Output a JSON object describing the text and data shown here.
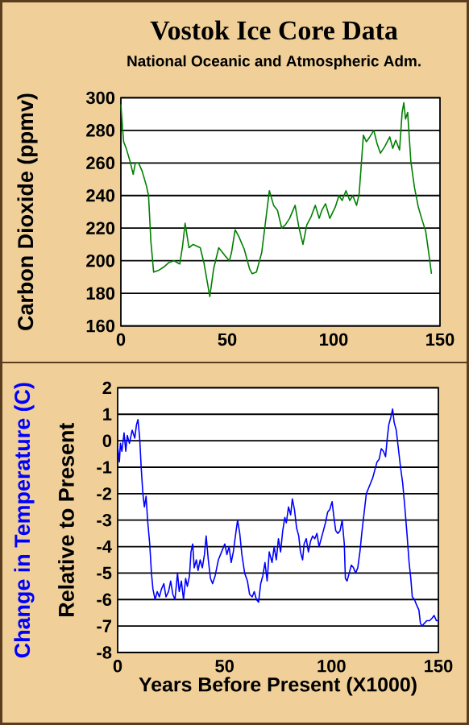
{
  "chart_data": [
    {
      "type": "line",
      "title": "Vostok Ice Core Data",
      "subtitle": "National Oceanic and Atmospheric Adm.",
      "ylabel": "Carbon Dioxide (ppmv)",
      "xlim": [
        0,
        150
      ],
      "xticks": [
        0,
        50,
        100,
        150
      ],
      "ylim": [
        160,
        300
      ],
      "yticks": [
        160,
        180,
        200,
        220,
        240,
        260,
        280,
        300
      ],
      "grid": "y",
      "series": [
        {
          "color": "#008000",
          "x": [
            0,
            0.8,
            1.3,
            2.5,
            4.3,
            5.8,
            6.8,
            8.3,
            10,
            12,
            13,
            14.1,
            15.4,
            17.6,
            20,
            22.7,
            25,
            27.7,
            29,
            30.2,
            32,
            34,
            37.3,
            39,
            40.6,
            41.8,
            43.6,
            46,
            49,
            51,
            52,
            53.7,
            55.4,
            58,
            60.5,
            61.7,
            63.7,
            66.2,
            69.8,
            71.8,
            73.6,
            75.6,
            77.3,
            79.3,
            81.9,
            83.6,
            85.6,
            87.4,
            89.4,
            91.4,
            93.2,
            94.5,
            96.2,
            98.2,
            100.8,
            102.5,
            104,
            105.8,
            107.6,
            109,
            110.8,
            112,
            114,
            115.4,
            117,
            118.9,
            120.4,
            122,
            124,
            126.4,
            127.8,
            129.2,
            131,
            132.2,
            133,
            133.8,
            134.8,
            136.3,
            138,
            139.8,
            141.6,
            143.3,
            144.8,
            146
          ],
          "values": [
            296,
            281,
            273,
            269,
            261,
            253,
            260,
            260,
            255,
            246,
            240,
            212,
            193,
            194,
            196,
            199,
            200,
            198,
            209,
            223,
            208,
            210,
            208,
            199,
            187,
            178,
            195,
            208,
            203,
            200,
            205,
            219,
            215,
            207,
            195,
            192,
            193,
            205,
            243,
            234,
            231,
            220,
            222,
            226,
            234,
            221,
            210,
            222,
            227,
            234,
            226,
            231,
            235,
            226,
            233,
            240,
            237,
            243,
            237,
            240,
            234,
            241,
            277,
            273,
            276,
            280,
            272,
            266,
            270,
            276,
            269,
            274,
            268,
            291,
            297,
            287,
            291,
            261,
            245,
            233,
            225,
            218,
            204,
            192
          ]
        }
      ]
    },
    {
      "type": "line",
      "xlabel": "Years Before Present (X1000)",
      "ylabel": "Change in Temperature (C)",
      "annotations": [
        "Relative to Present"
      ],
      "xlim": [
        0,
        150
      ],
      "xticks": [
        0,
        50,
        100,
        150
      ],
      "ylim": [
        -8,
        2
      ],
      "yticks": [
        -8,
        -7,
        -6,
        -5,
        -4,
        -3,
        -2,
        -1,
        0,
        1,
        2
      ],
      "grid": "y",
      "series": [
        {
          "color": "#0000ff",
          "x": [
            0,
            0.8,
            1.3,
            2,
            3,
            3.8,
            4.5,
            5.5,
            6.8,
            8,
            8.8,
            9.5,
            10.3,
            11,
            11.8,
            12.5,
            13.3,
            14,
            15,
            15.8,
            16.5,
            17.5,
            18.5,
            19.5,
            20.5,
            21.6,
            22.6,
            23.8,
            24.8,
            25.8,
            26.8,
            28,
            28.8,
            29.8,
            30.8,
            31.8,
            32.6,
            33.6,
            34.3,
            35.1,
            35.8,
            36.8,
            37.6,
            38.6,
            39.6,
            40.6,
            41.4,
            42.4,
            43.4,
            44.4,
            45.6,
            47.1,
            48.6,
            50.1,
            51.1,
            52.1,
            53.1,
            54.1,
            55.4,
            56.1,
            57.1,
            58.1,
            59.4,
            60.7,
            61.7,
            62.9,
            63.9,
            64.9,
            65.9,
            66.9,
            67.9,
            68.9,
            69.9,
            70.9,
            72.2,
            73.2,
            74.2,
            75.2,
            76.2,
            77.2,
            78.2,
            78.9,
            79.9,
            80.9,
            81.7,
            82.7,
            83.7,
            84.7,
            85.5,
            86.5,
            87.2,
            88.2,
            89.2,
            90.2,
            91.2,
            92.2,
            93.2,
            94.2,
            95.2,
            96.2,
            97.2,
            98.2,
            99.2,
            100.3,
            101,
            102,
            103,
            104,
            105,
            106,
            106.5,
            107.3,
            108.3,
            109.3,
            110.3,
            111.3,
            112.3,
            113.3,
            114.3,
            115.3,
            116.3,
            117.3,
            118.3,
            119.3,
            120.3,
            121.3,
            122.3,
            123.3,
            124.3,
            125.3,
            126.1,
            126.8,
            127.8,
            128.6,
            129.3,
            130.3,
            131.3,
            132.3,
            133.3,
            134.3,
            135.3,
            136.3,
            137.1,
            137.8,
            138.8,
            139.8,
            140.9,
            141.6,
            142.4,
            143.4,
            144.6,
            145.9,
            147.1,
            148,
            149.1,
            150
          ],
          "values": [
            -0.2,
            -0.8,
            -0.1,
            -0.4,
            0.3,
            -0.4,
            0.2,
            -0.1,
            0.4,
            0.1,
            0.6,
            0.8,
            0.1,
            -1,
            -2,
            -2.5,
            -2.1,
            -3,
            -3.9,
            -5,
            -5.6,
            -6,
            -5.7,
            -5.9,
            -5.6,
            -5.4,
            -5.9,
            -5.7,
            -5.3,
            -5.8,
            -6,
            -5,
            -5.7,
            -5.3,
            -6,
            -5.2,
            -5.5,
            -5.1,
            -4.2,
            -3.9,
            -4.8,
            -4.5,
            -4.9,
            -4.5,
            -4.8,
            -4.3,
            -3.6,
            -4.5,
            -5.2,
            -5.4,
            -5.1,
            -4.5,
            -4.2,
            -3.9,
            -4.3,
            -4,
            -4.6,
            -4.2,
            -3.4,
            -3,
            -3.5,
            -4.3,
            -5,
            -5.3,
            -5.8,
            -5.9,
            -5.7,
            -6,
            -6.1,
            -5.4,
            -5.1,
            -4.6,
            -5.3,
            -4.2,
            -4.6,
            -4,
            -4.5,
            -3.7,
            -4.2,
            -3.4,
            -2.9,
            -3.1,
            -2.5,
            -2.8,
            -2.2,
            -2.6,
            -3.3,
            -3.6,
            -4.2,
            -4.5,
            -3.9,
            -3.7,
            -4.2,
            -3.8,
            -3.6,
            -3.7,
            -3.5,
            -4,
            -3.7,
            -3.4,
            -3.1,
            -2.7,
            -2.6,
            -2.3,
            -2.8,
            -3.4,
            -3.5,
            -3.4,
            -3,
            -3.9,
            -5.2,
            -5.3,
            -5,
            -4.7,
            -4.8,
            -5,
            -4.8,
            -4.2,
            -3.4,
            -2.7,
            -2,
            -1.8,
            -1.6,
            -1.4,
            -1.1,
            -0.8,
            -0.7,
            -0.3,
            -0.4,
            -0.6,
            0.1,
            0.6,
            0.9,
            1.2,
            0.7,
            0.4,
            -0.3,
            -1,
            -1.6,
            -2.5,
            -3.5,
            -4.6,
            -5.2,
            -5.9,
            -6,
            -6.2,
            -6.4,
            -6.9,
            -7,
            -6.9,
            -6.8,
            -6.8,
            -6.7,
            -6.6,
            -6.8,
            -6.8
          ]
        }
      ]
    }
  ]
}
